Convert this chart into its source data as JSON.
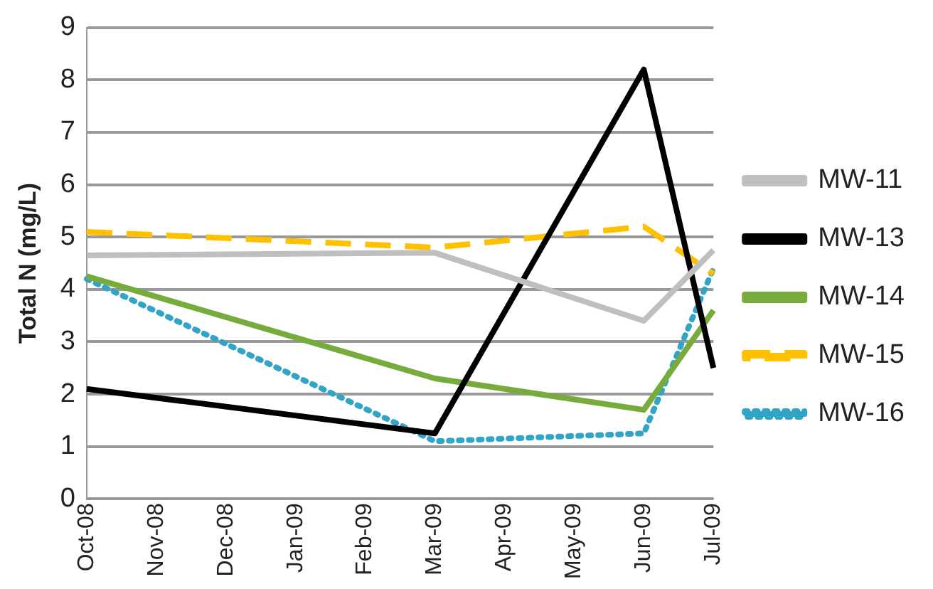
{
  "chart_data": {
    "type": "line",
    "ylabel": "Total N (mg/L)",
    "categories": [
      "Oct-08",
      "Nov-08",
      "Dec-08",
      "Jan-09",
      "Feb-09",
      "Mar-09",
      "Apr-09",
      "May-09",
      "Jun-09",
      "Jul-09"
    ],
    "series": [
      {
        "name": "MW-11",
        "color": "#bfbfbf",
        "line_style": "solid",
        "values": [
          4.65,
          null,
          null,
          null,
          null,
          4.7,
          null,
          null,
          3.4,
          4.75
        ]
      },
      {
        "name": "MW-13",
        "color": "#000000",
        "line_style": "solid",
        "values": [
          2.1,
          null,
          null,
          null,
          null,
          1.25,
          null,
          null,
          8.2,
          2.5
        ]
      },
      {
        "name": "MW-14",
        "color": "#77ac3c",
        "line_style": "solid",
        "values": [
          4.25,
          null,
          null,
          null,
          null,
          2.3,
          null,
          null,
          1.7,
          3.6
        ]
      },
      {
        "name": "MW-15",
        "color": "#ffc000",
        "line_style": "dashed",
        "values": [
          5.1,
          null,
          null,
          null,
          null,
          4.8,
          null,
          null,
          5.2,
          4.3
        ]
      },
      {
        "name": "MW-16",
        "color": "#31a4c8",
        "line_style": "dotted",
        "values": [
          4.2,
          null,
          null,
          null,
          null,
          1.1,
          null,
          null,
          1.25,
          4.4
        ]
      }
    ],
    "ylim": [
      0,
      9
    ],
    "yticks": [
      0,
      1,
      2,
      3,
      4,
      5,
      6,
      7,
      8,
      9
    ],
    "grid": "y",
    "legend": "right",
    "marker": "none"
  }
}
